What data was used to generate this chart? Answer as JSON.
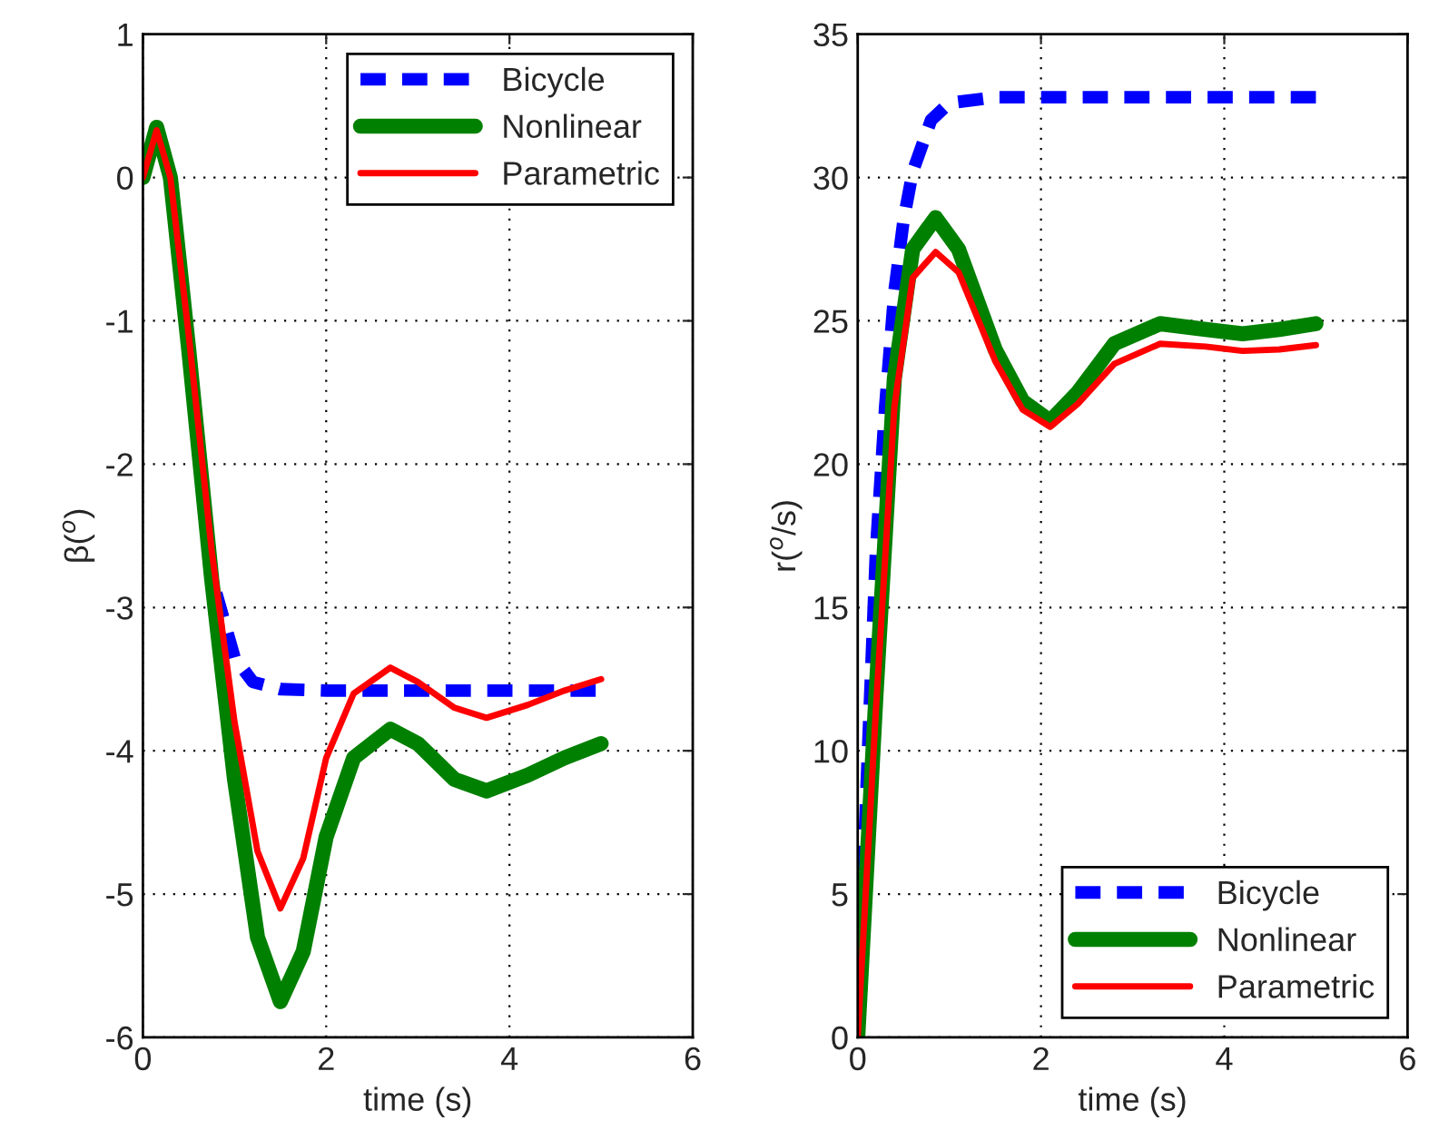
{
  "chart_data": [
    {
      "type": "line",
      "xlabel": "time (s)",
      "ylabel": "β($^{o}$)",
      "xlim": [
        0,
        6
      ],
      "xticks": [
        0,
        2,
        4,
        6
      ],
      "ylim": [
        -6,
        1
      ],
      "yticks": [
        -6,
        -5,
        -4,
        -3,
        -2,
        -1,
        0,
        1
      ],
      "grid": true,
      "legend": "top right",
      "series": [
        {
          "name": "Bicycle",
          "color": "#0000ff",
          "line_style": "dashed",
          "x": [
            0.8,
            1.0,
            1.2,
            1.5,
            2,
            5
          ],
          "values": [
            -2.9,
            -3.35,
            -3.52,
            -3.57,
            -3.58,
            -3.58
          ]
        },
        {
          "name": "Nonlinear",
          "color": "#008000",
          "line_style": "solid",
          "x": [
            0,
            0.15,
            0.3,
            0.5,
            0.75,
            1.0,
            1.25,
            1.5,
            1.75,
            2.0,
            2.3,
            2.7,
            3.0,
            3.4,
            3.75,
            4.2,
            4.6,
            5
          ],
          "values": [
            0,
            0.35,
            0,
            -1.2,
            -2.8,
            -4.2,
            -5.3,
            -5.75,
            -5.4,
            -4.6,
            -4.05,
            -3.85,
            -3.95,
            -4.2,
            -4.28,
            -4.17,
            -4.05,
            -3.95
          ]
        },
        {
          "name": "Parametric",
          "color": "#ff0000",
          "line_style": "solid",
          "x": [
            0,
            0.15,
            0.3,
            0.5,
            0.75,
            1.0,
            1.25,
            1.5,
            1.75,
            2.0,
            2.3,
            2.7,
            3.0,
            3.4,
            3.75,
            4.2,
            4.6,
            5
          ],
          "values": [
            0,
            0.33,
            0,
            -1.1,
            -2.6,
            -3.8,
            -4.7,
            -5.1,
            -4.75,
            -4.05,
            -3.6,
            -3.42,
            -3.52,
            -3.7,
            -3.77,
            -3.68,
            -3.58,
            -3.5
          ]
        }
      ]
    },
    {
      "type": "line",
      "xlabel": "time (s)",
      "ylabel": "r($^{o}$/s)",
      "xlim": [
        0,
        6
      ],
      "xticks": [
        0,
        2,
        4,
        6
      ],
      "ylim": [
        0,
        35
      ],
      "yticks": [
        0,
        5,
        10,
        15,
        20,
        25,
        30,
        35
      ],
      "grid": true,
      "legend": "bottom right",
      "series": [
        {
          "name": "Bicycle",
          "color": "#0000ff",
          "line_style": "dashed",
          "x": [
            0,
            0.1,
            0.2,
            0.3,
            0.4,
            0.5,
            0.6,
            0.8,
            1.0,
            1.5,
            5
          ],
          "values": [
            0,
            9,
            17,
            22,
            26,
            28.5,
            30.2,
            32,
            32.6,
            32.8,
            32.8
          ]
        },
        {
          "name": "Nonlinear",
          "color": "#008000",
          "line_style": "solid",
          "x": [
            0,
            0.2,
            0.4,
            0.6,
            0.85,
            1.1,
            1.5,
            1.8,
            2.1,
            2.4,
            2.8,
            3.3,
            3.8,
            4.2,
            4.6,
            5
          ],
          "values": [
            0,
            12,
            23,
            27.5,
            28.6,
            27.5,
            24,
            22.2,
            21.5,
            22.5,
            24.2,
            24.9,
            24.7,
            24.55,
            24.7,
            24.9
          ]
        },
        {
          "name": "Parametric",
          "color": "#ff0000",
          "line_style": "solid",
          "x": [
            0,
            0.2,
            0.4,
            0.6,
            0.85,
            1.1,
            1.5,
            1.8,
            2.1,
            2.4,
            2.8,
            3.3,
            3.8,
            4.2,
            4.6,
            5
          ],
          "values": [
            0,
            11.5,
            22,
            26.5,
            27.4,
            26.7,
            23.6,
            21.9,
            21.3,
            22.1,
            23.5,
            24.2,
            24.1,
            23.95,
            24,
            24.15
          ]
        }
      ]
    }
  ]
}
